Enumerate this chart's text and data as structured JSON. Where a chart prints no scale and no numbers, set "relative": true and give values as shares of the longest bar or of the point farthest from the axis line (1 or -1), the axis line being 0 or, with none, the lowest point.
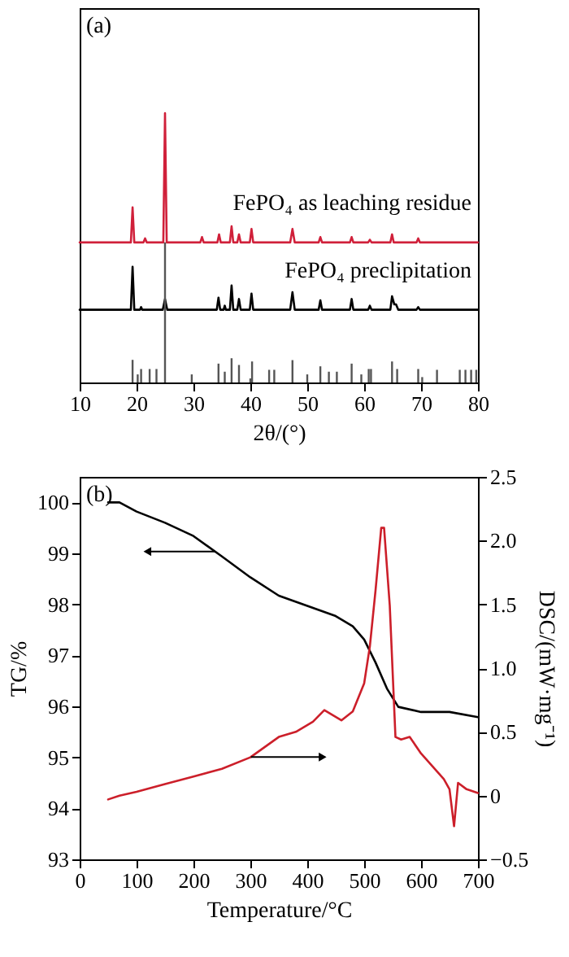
{
  "chart_data": [
    {
      "type": "line",
      "relative": true,
      "xlabel": "2θ/(°)",
      "xlim": [
        10,
        80
      ],
      "xticks": [
        10,
        20,
        30,
        40,
        50,
        60,
        70,
        80
      ],
      "tick_labels": "x",
      "grid": false,
      "annotations": [
        "(a)"
      ],
      "series": [
        {
          "name": "FePO₄ as leaching residue",
          "color": "#d0203a",
          "x": [
            10,
            19.0,
            19.3,
            19.6,
            21.2,
            21.5,
            21.8,
            24.7,
            25.0,
            25.3,
            31.2,
            31.5,
            31.8,
            34.2,
            34.5,
            34.8,
            36.4,
            36.7,
            37.0,
            37.7,
            38.0,
            38.3,
            39.9,
            40.2,
            40.5,
            47.0,
            47.4,
            47.8,
            52.0,
            52.3,
            52.6,
            57.5,
            57.8,
            58.1,
            60.7,
            61.0,
            61.3,
            64.6,
            64.9,
            65.2,
            69.2,
            69.5,
            69.8,
            80
          ],
          "values": [
            0.52,
            0.52,
            0.65,
            0.52,
            0.52,
            0.535,
            0.52,
            0.52,
            1.0,
            0.52,
            0.52,
            0.54,
            0.52,
            0.52,
            0.55,
            0.52,
            0.52,
            0.58,
            0.52,
            0.52,
            0.55,
            0.52,
            0.52,
            0.57,
            0.52,
            0.52,
            0.57,
            0.52,
            0.52,
            0.54,
            0.52,
            0.52,
            0.54,
            0.52,
            0.52,
            0.53,
            0.52,
            0.52,
            0.55,
            0.52,
            0.52,
            0.535,
            0.52,
            0.52
          ]
        },
        {
          "name": "FePO₄ preclipitation",
          "color": "#000000",
          "x": [
            10,
            19.0,
            19.3,
            19.6,
            20.6,
            20.8,
            21.0,
            24.6,
            25.0,
            25.4,
            34.1,
            34.4,
            34.7,
            35.3,
            35.5,
            35.7,
            36.4,
            36.7,
            37.0,
            37.7,
            38.0,
            38.3,
            39.9,
            40.2,
            40.5,
            47.0,
            47.4,
            47.8,
            52.0,
            52.3,
            52.6,
            57.5,
            57.8,
            58.1,
            60.7,
            61.0,
            61.3,
            64.6,
            64.9,
            65.3,
            65.6,
            66.0,
            69.2,
            69.5,
            69.8,
            80
          ],
          "values": [
            0.27,
            0.27,
            0.43,
            0.27,
            0.27,
            0.28,
            0.27,
            0.27,
            0.31,
            0.27,
            0.27,
            0.315,
            0.27,
            0.27,
            0.285,
            0.27,
            0.27,
            0.36,
            0.27,
            0.27,
            0.31,
            0.27,
            0.27,
            0.33,
            0.27,
            0.27,
            0.335,
            0.27,
            0.27,
            0.305,
            0.27,
            0.27,
            0.31,
            0.27,
            0.27,
            0.285,
            0.27,
            0.27,
            0.32,
            0.29,
            0.29,
            0.27,
            0.27,
            0.28,
            0.27,
            0.27
          ]
        },
        {
          "type": "bar",
          "color": "#555555",
          "x": [
            19.3,
            20.2,
            20.8,
            22.3,
            23.5,
            25,
            29.7,
            34.4,
            35.5,
            36.7,
            38,
            40,
            40.3,
            43.3,
            44.2,
            47.4,
            50,
            52.3,
            53.8,
            55.2,
            57.8,
            59.5,
            60.8,
            61.2,
            64.9,
            65.8,
            69.5,
            70.2,
            72.8,
            76.8,
            77.8,
            78.8,
            79.7
          ],
          "values": [
            0.084,
            0.03,
            0.05,
            0.05,
            0.05,
            0.52,
            0.03,
            0.07,
            0.04,
            0.09,
            0.065,
            0.015,
            0.078,
            0.047,
            0.047,
            0.083,
            0.03,
            0.06,
            0.04,
            0.04,
            0.07,
            0.03,
            0.05,
            0.05,
            0.078,
            0.05,
            0.05,
            0.02,
            0.047,
            0.047,
            0.047,
            0.047,
            0.047
          ]
        }
      ]
    },
    {
      "type": "line",
      "xlabel": "Temperature/°C",
      "ylabel": "TG/%",
      "y2label": "DSC/(mW·mg⁻¹)",
      "xlim": [
        0,
        700
      ],
      "xticks": [
        0,
        100,
        200,
        300,
        400,
        500,
        600,
        700
      ],
      "ylim": [
        93,
        100.5
      ],
      "yticks": [
        93,
        94,
        95,
        96,
        97,
        98,
        99,
        100
      ],
      "y2lim": [
        -0.5,
        2.5
      ],
      "y2ticks": [
        {
          "value": -0.5,
          "label": "−0.5"
        },
        0,
        0.5,
        {
          "value": 1,
          "label": "1.0"
        },
        1.5,
        {
          "value": 2,
          "label": "2.0"
        },
        2.5
      ],
      "grid": false,
      "annotations": [
        "(b)"
      ],
      "series": [
        {
          "color": "#000000",
          "x": [
            50,
            70,
            100,
            150,
            200,
            250,
            300,
            350,
            400,
            450,
            480,
            500,
            520,
            540,
            560,
            600,
            650,
            700
          ],
          "values": [
            100.0,
            100.0,
            99.82,
            99.6,
            99.34,
            98.94,
            98.53,
            98.17,
            97.97,
            97.77,
            97.57,
            97.31,
            96.86,
            96.35,
            95.99,
            95.89,
            95.89,
            95.79
          ]
        },
        {
          "axis": "y2",
          "color": "#cc1f2a",
          "x": [
            50,
            70,
            100,
            150,
            200,
            250,
            300,
            350,
            380,
            410,
            430,
            460,
            480,
            500,
            510,
            520,
            530,
            535,
            545,
            555,
            565,
            580,
            600,
            620,
            640,
            650,
            658,
            665,
            680,
            700
          ],
          "values": [
            -0.03,
            0.0,
            0.03,
            0.09,
            0.15,
            0.21,
            0.3,
            0.46,
            0.5,
            0.58,
            0.67,
            0.59,
            0.66,
            0.88,
            1.17,
            1.61,
            2.1,
            2.1,
            1.49,
            0.46,
            0.44,
            0.46,
            0.33,
            0.23,
            0.13,
            0.05,
            -0.24,
            0.1,
            0.05,
            0.02
          ]
        }
      ]
    }
  ]
}
